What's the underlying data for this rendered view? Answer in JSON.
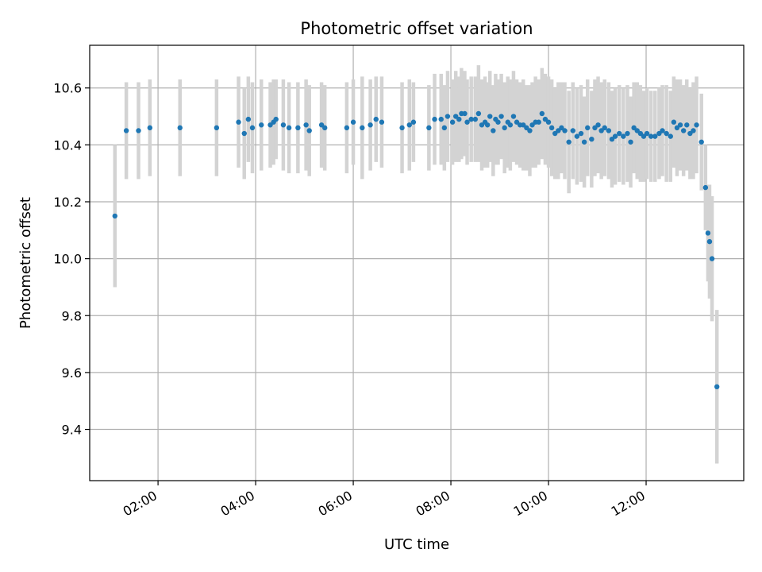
{
  "chart_data": {
    "type": "scatter",
    "title": "Photometric offset variation",
    "xlabel": "UTC time",
    "ylabel": "Photometric offset",
    "xlim": [
      "00:36",
      "14:00"
    ],
    "ylim": [
      9.22,
      10.75
    ],
    "grid": true,
    "x_ticks": [
      "02:00",
      "04:00",
      "06:00",
      "08:00",
      "10:00",
      "12:00"
    ],
    "y_ticks": [
      "9.4",
      "9.6",
      "9.8",
      "10.0",
      "10.2",
      "10.4",
      "10.6"
    ],
    "colors": {
      "point": "#1f77b4",
      "errorbar": "#d3d3d3",
      "grid": "#b0b0b0"
    },
    "series": [
      {
        "points": [
          [
            "01:07",
            10.15,
            0.25
          ],
          [
            "01:21",
            10.45,
            0.17
          ],
          [
            "01:36",
            10.45,
            0.17
          ],
          [
            "01:50",
            10.46,
            0.17
          ],
          [
            "02:27",
            10.46,
            0.17
          ],
          [
            "03:12",
            10.46,
            0.17
          ],
          [
            "03:39",
            10.48,
            0.16
          ],
          [
            "03:46",
            10.44,
            0.16
          ],
          [
            "03:51",
            10.49,
            0.15
          ],
          [
            "03:56",
            10.46,
            0.16
          ],
          [
            "04:07",
            10.47,
            0.16
          ],
          [
            "04:18",
            10.47,
            0.15
          ],
          [
            "04:22",
            10.48,
            0.15
          ],
          [
            "04:25",
            10.49,
            0.14
          ],
          [
            "04:34",
            10.47,
            0.16
          ],
          [
            "04:41",
            10.46,
            0.16
          ],
          [
            "04:52",
            10.46,
            0.16
          ],
          [
            "05:02",
            10.47,
            0.16
          ],
          [
            "05:06",
            10.45,
            0.16
          ],
          [
            "05:21",
            10.47,
            0.15
          ],
          [
            "05:25",
            10.46,
            0.15
          ],
          [
            "05:52",
            10.46,
            0.16
          ],
          [
            "06:00",
            10.48,
            0.15
          ],
          [
            "06:11",
            10.46,
            0.18
          ],
          [
            "06:21",
            10.47,
            0.16
          ],
          [
            "06:28",
            10.49,
            0.15
          ],
          [
            "06:35",
            10.48,
            0.16
          ],
          [
            "07:00",
            10.46,
            0.16
          ],
          [
            "07:09",
            10.47,
            0.16
          ],
          [
            "07:14",
            10.48,
            0.14
          ],
          [
            "07:33",
            10.46,
            0.15
          ],
          [
            "07:40",
            10.49,
            0.16
          ],
          [
            "07:48",
            10.49,
            0.16
          ],
          [
            "07:52",
            10.46,
            0.15
          ],
          [
            "07:56",
            10.5,
            0.16
          ],
          [
            "08:02",
            10.48,
            0.15
          ],
          [
            "08:06",
            10.5,
            0.16
          ],
          [
            "08:10",
            10.49,
            0.15
          ],
          [
            "08:13",
            10.51,
            0.16
          ],
          [
            "08:17",
            10.51,
            0.15
          ],
          [
            "08:20",
            10.48,
            0.15
          ],
          [
            "08:25",
            10.49,
            0.15
          ],
          [
            "08:30",
            10.49,
            0.15
          ],
          [
            "08:34",
            10.51,
            0.17
          ],
          [
            "08:38",
            10.47,
            0.16
          ],
          [
            "08:42",
            10.48,
            0.16
          ],
          [
            "08:45",
            10.47,
            0.15
          ],
          [
            "08:48",
            10.5,
            0.16
          ],
          [
            "08:52",
            10.45,
            0.16
          ],
          [
            "08:55",
            10.49,
            0.16
          ],
          [
            "08:58",
            10.48,
            0.15
          ],
          [
            "09:02",
            10.5,
            0.15
          ],
          [
            "09:06",
            10.46,
            0.16
          ],
          [
            "09:10",
            10.48,
            0.16
          ],
          [
            "09:13",
            10.47,
            0.16
          ],
          [
            "09:17",
            10.5,
            0.16
          ],
          [
            "09:21",
            10.48,
            0.15
          ],
          [
            "09:25",
            10.47,
            0.15
          ],
          [
            "09:29",
            10.47,
            0.16
          ],
          [
            "09:33",
            10.46,
            0.15
          ],
          [
            "09:37",
            10.45,
            0.16
          ],
          [
            "09:40",
            10.47,
            0.15
          ],
          [
            "09:44",
            10.48,
            0.16
          ],
          [
            "09:48",
            10.48,
            0.15
          ],
          [
            "09:52",
            10.51,
            0.16
          ],
          [
            "09:56",
            10.49,
            0.16
          ],
          [
            "10:00",
            10.48,
            0.16
          ],
          [
            "10:04",
            10.46,
            0.17
          ],
          [
            "10:08",
            10.44,
            0.16
          ],
          [
            "10:12",
            10.45,
            0.17
          ],
          [
            "10:16",
            10.46,
            0.16
          ],
          [
            "10:20",
            10.45,
            0.17
          ],
          [
            "10:25",
            10.41,
            0.18
          ],
          [
            "10:30",
            10.45,
            0.17
          ],
          [
            "10:35",
            10.43,
            0.17
          ],
          [
            "10:40",
            10.44,
            0.17
          ],
          [
            "10:44",
            10.41,
            0.16
          ],
          [
            "10:48",
            10.46,
            0.17
          ],
          [
            "10:53",
            10.42,
            0.17
          ],
          [
            "10:57",
            10.46,
            0.17
          ],
          [
            "11:01",
            10.47,
            0.17
          ],
          [
            "11:05",
            10.45,
            0.17
          ],
          [
            "11:09",
            10.46,
            0.17
          ],
          [
            "11:14",
            10.45,
            0.17
          ],
          [
            "11:18",
            10.42,
            0.17
          ],
          [
            "11:22",
            10.43,
            0.17
          ],
          [
            "11:27",
            10.44,
            0.17
          ],
          [
            "11:32",
            10.43,
            0.17
          ],
          [
            "11:37",
            10.44,
            0.17
          ],
          [
            "11:41",
            10.41,
            0.16
          ],
          [
            "11:45",
            10.46,
            0.16
          ],
          [
            "11:49",
            10.45,
            0.17
          ],
          [
            "11:53",
            10.44,
            0.17
          ],
          [
            "11:57",
            10.43,
            0.16
          ],
          [
            "12:01",
            10.44,
            0.16
          ],
          [
            "12:06",
            10.43,
            0.16
          ],
          [
            "12:11",
            10.43,
            0.16
          ],
          [
            "12:16",
            10.44,
            0.16
          ],
          [
            "12:20",
            10.45,
            0.16
          ],
          [
            "12:25",
            10.44,
            0.17
          ],
          [
            "12:30",
            10.43,
            0.16
          ],
          [
            "12:34",
            10.48,
            0.16
          ],
          [
            "12:38",
            10.46,
            0.17
          ],
          [
            "12:42",
            10.47,
            0.16
          ],
          [
            "12:46",
            10.45,
            0.16
          ],
          [
            "12:50",
            10.47,
            0.16
          ],
          [
            "12:54",
            10.44,
            0.16
          ],
          [
            "12:58",
            10.45,
            0.17
          ],
          [
            "13:02",
            10.47,
            0.17
          ],
          [
            "13:08",
            10.41,
            0.17
          ],
          [
            "13:13",
            10.25,
            0.15
          ],
          [
            "13:16",
            10.09,
            0.17
          ],
          [
            "13:18",
            10.06,
            0.2
          ],
          [
            "13:21",
            10.0,
            0.22
          ],
          [
            "13:27",
            9.55,
            0.27
          ]
        ]
      }
    ]
  }
}
